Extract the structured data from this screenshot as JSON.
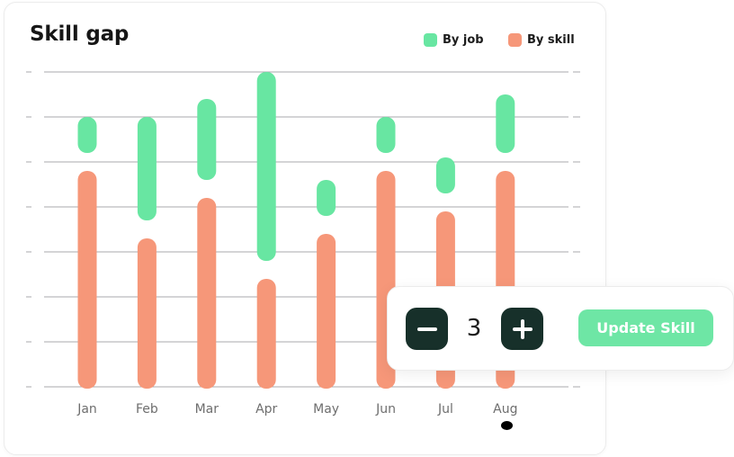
{
  "card": {
    "title": "Skill gap"
  },
  "legend": [
    {
      "label": "By job",
      "color": "#68e6a2"
    },
    {
      "label": "By skill",
      "color": "#f69779"
    }
  ],
  "chart_data": {
    "type": "bar",
    "title": "Skill gap",
    "xlabel": "",
    "ylabel": "",
    "categories": [
      "Jan",
      "Feb",
      "Mar",
      "Apr",
      "May",
      "Jun",
      "Jul",
      "Aug"
    ],
    "series": [
      {
        "name": "By skill",
        "color": "#f69779",
        "values": [
          4.8,
          3.3,
          4.2,
          2.4,
          3.4,
          4.8,
          3.9,
          4.8
        ]
      },
      {
        "name": "By job",
        "color": "#68e6a2",
        "values": [
          0.8,
          2.3,
          1.8,
          4.2,
          0.8,
          0.8,
          0.8,
          1.3
        ]
      }
    ],
    "stacked": true,
    "ylim": [
      0,
      7
    ],
    "grid": true,
    "legend_position": "top-right"
  },
  "stepper": {
    "value": "3",
    "minus_icon": "minus-icon",
    "plus_icon": "plus-icon"
  },
  "update_button": {
    "label": "Update Skill"
  }
}
